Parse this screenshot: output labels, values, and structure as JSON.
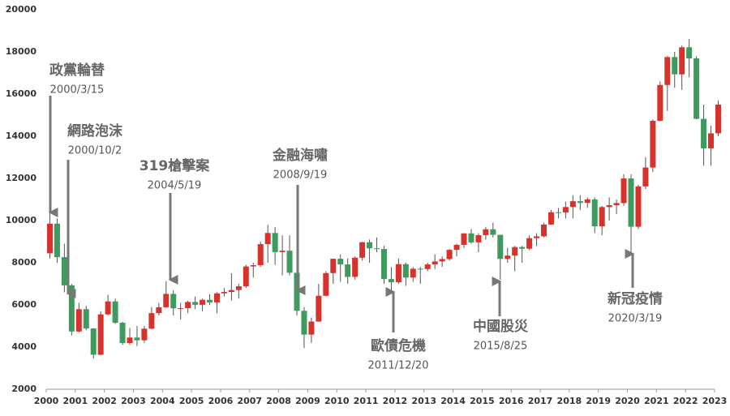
{
  "chart_data": {
    "type": "candlestick",
    "x": [
      2000.125,
      2000.375,
      2000.625,
      2000.875,
      2001.125,
      2001.375,
      2001.625,
      2001.875,
      2002.125,
      2002.375,
      2002.625,
      2002.875,
      2003.125,
      2003.375,
      2003.625,
      2003.875,
      2004.125,
      2004.375,
      2004.625,
      2004.875,
      2005.125,
      2005.375,
      2005.625,
      2005.875,
      2006.125,
      2006.375,
      2006.625,
      2006.875,
      2007.125,
      2007.375,
      2007.625,
      2007.875,
      2008.125,
      2008.375,
      2008.625,
      2008.875,
      2009.125,
      2009.375,
      2009.625,
      2009.875,
      2010.125,
      2010.375,
      2010.625,
      2010.875,
      2011.125,
      2011.375,
      2011.625,
      2011.875,
      2012.125,
      2012.375,
      2012.625,
      2012.875,
      2013.125,
      2013.375,
      2013.625,
      2013.875,
      2014.125,
      2014.375,
      2014.625,
      2014.875,
      2015.125,
      2015.375,
      2015.625,
      2015.875,
      2016.125,
      2016.375,
      2016.625,
      2016.875,
      2017.125,
      2017.375,
      2017.625,
      2017.875,
      2018.125,
      2018.375,
      2018.625,
      2018.875,
      2019.125,
      2019.375,
      2019.625,
      2019.875,
      2020.125,
      2020.375,
      2020.625,
      2020.875,
      2021.125,
      2021.375,
      2021.625,
      2021.875,
      2022.125,
      2022.375,
      2022.625,
      2022.875,
      2023.125
    ],
    "open": [
      8448,
      9854,
      8265,
      6928,
      4739,
      5797,
      4883,
      3636,
      5551,
      6167,
      5153,
      4192,
      4452,
      4321,
      4872,
      5611,
      5890,
      6522,
      5839,
      5845,
      6139,
      6006,
      6241,
      6119,
      6548,
      6613,
      6704,
      6884,
      7823,
      7884,
      8883,
      9411,
      8506,
      8572,
      7524,
      5719,
      4591,
      5210,
      6432,
      7509,
      8188,
      7920,
      7329,
      8237,
      8972,
      8683,
      8652,
      7225,
      7072,
      7933,
      7296,
      7715,
      7700,
      7919,
      8062,
      8173,
      8611,
      8849,
      9393,
      8966,
      9307,
      9586,
      9323,
      8181,
      8338,
      8744,
      8666,
      9166,
      9253,
      9811,
      10395,
      10383,
      10643,
      10919,
      10837,
      11006,
      9727,
      10641,
      10731,
      10830,
      11997,
      9708,
      11621,
      12516,
      14733,
      16431,
      17755,
      16935,
      18219,
      17693,
      14826,
      13425,
      14138
    ],
    "high": [
      10393,
      10100,
      8900,
      7000,
      6100,
      5950,
      4900,
      5700,
      6480,
      6300,
      5200,
      4900,
      5000,
      5000,
      5900,
      6100,
      7130,
      6700,
      6100,
      6200,
      6400,
      6300,
      6500,
      6600,
      6800,
      7500,
      7000,
      7900,
      8000,
      9000,
      9800,
      9700,
      9300,
      9300,
      7600,
      5900,
      5400,
      7000,
      7600,
      8200,
      8400,
      8200,
      8300,
      8990,
      9100,
      9200,
      8800,
      7800,
      8200,
      8000,
      7800,
      7800,
      8000,
      8400,
      8300,
      8650,
      8900,
      9400,
      9600,
      9400,
      9700,
      9900,
      9300,
      8700,
      8800,
      8800,
      9300,
      9400,
      9900,
      10500,
      10600,
      10900,
      11200,
      11200,
      11100,
      11100,
      10700,
      11100,
      11000,
      12200,
      12200,
      11700,
      13000,
      14800,
      16600,
      17800,
      18000,
      18300,
      18620,
      17800,
      15500,
      14500,
      15700
    ],
    "low": [
      8200,
      8000,
      6600,
      4550,
      4700,
      4800,
      3450,
      3600,
      5500,
      5100,
      4100,
      4100,
      4050,
      4200,
      4850,
      5500,
      5850,
      5500,
      5300,
      5600,
      5800,
      5700,
      6000,
      5600,
      6400,
      6200,
      6300,
      6800,
      7300,
      7800,
      8000,
      7900,
      7400,
      7400,
      5500,
      3950,
      4200,
      5200,
      6400,
      7000,
      7100,
      7000,
      7200,
      8100,
      8000,
      8500,
      7000,
      6600,
      7000,
      6900,
      7100,
      7000,
      7600,
      7700,
      7800,
      8100,
      8300,
      8700,
      8900,
      8500,
      9100,
      9200,
      7200,
      8000,
      7600,
      8000,
      8600,
      8800,
      9200,
      9800,
      10100,
      10100,
      10100,
      10500,
      10600,
      9400,
      9300,
      10000,
      10300,
      10700,
      8500,
      9600,
      11500,
      12300,
      14700,
      15200,
      16300,
      16200,
      16800,
      14800,
      12600,
      12600,
      14000
    ],
    "close": [
      9854,
      8265,
      6928,
      4739,
      5797,
      4883,
      3636,
      5551,
      6167,
      5153,
      4192,
      4452,
      4321,
      4872,
      5611,
      5890,
      6522,
      5839,
      5845,
      6139,
      6006,
      6241,
      6119,
      6548,
      6613,
      6704,
      6884,
      7823,
      7884,
      8883,
      9411,
      8506,
      8572,
      7524,
      5719,
      4591,
      5210,
      6432,
      7509,
      8188,
      7920,
      7329,
      8237,
      8972,
      8683,
      8652,
      7225,
      7072,
      7933,
      7296,
      7715,
      7700,
      7919,
      8062,
      8173,
      8611,
      8849,
      9393,
      8966,
      9307,
      9586,
      9323,
      8181,
      8338,
      8744,
      8666,
      9166,
      9253,
      9811,
      10395,
      10383,
      10643,
      10919,
      10837,
      11006,
      9727,
      10641,
      10731,
      10830,
      11997,
      9708,
      11621,
      12516,
      14733,
      16431,
      17755,
      16935,
      18219,
      17693,
      14826,
      13425,
      14138,
      15500
    ],
    "up_color": "#d7322c",
    "down_color": "#3e9a5e",
    "xlim": [
      2000,
      2023
    ],
    "xticks": [
      2000,
      2001,
      2002,
      2003,
      2004,
      2005,
      2006,
      2007,
      2008,
      2009,
      2010,
      2011,
      2012,
      2013,
      2014,
      2015,
      2016,
      2017,
      2018,
      2019,
      2020,
      2021,
      2022,
      2023
    ],
    "ylim": [
      2000,
      20000
    ],
    "yticks": [
      2000,
      4000,
      6000,
      8000,
      10000,
      12000,
      14000,
      16000,
      18000,
      20000
    ],
    "annotations": [
      {
        "label": "政黨輪替",
        "date": "2000/3/15"
      },
      {
        "label": "網路泡沫",
        "date": "2000/10/2"
      },
      {
        "label": "319槍擊案",
        "date": "2004/5/19"
      },
      {
        "label": "金融海嘯",
        "date": "2008/9/19"
      },
      {
        "label": "歐債危機",
        "date": "2011/12/20"
      },
      {
        "label": "中國股災",
        "date": "2015/8/25"
      },
      {
        "label": "新冠疫情",
        "date": "2020/3/19"
      }
    ]
  }
}
